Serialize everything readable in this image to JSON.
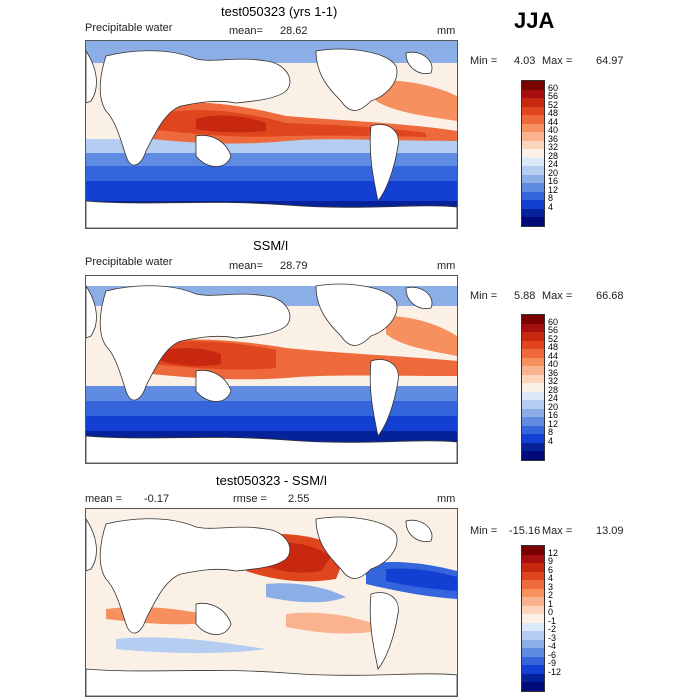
{
  "season": "JJA",
  "panels": [
    {
      "title": "test050323 (yrs 1-1)",
      "variable": "Precipitable water",
      "mean_label": "mean=",
      "mean_value": "28.62",
      "units": "mm",
      "min_label": "Min =",
      "min_value": "4.03",
      "max_label": "Max =",
      "max_value": "64.97",
      "colorbar_labels": [
        "60",
        "56",
        "52",
        "48",
        "44",
        "40",
        "36",
        "32",
        "28",
        "24",
        "20",
        "16",
        "12",
        "8",
        "4"
      ],
      "colorbar_colors": [
        "#7b0000",
        "#a50f0f",
        "#c8280f",
        "#e0461e",
        "#ee6a3c",
        "#f6905f",
        "#f9b38e",
        "#fbd6bd",
        "#fbf0e6",
        "#dbe9f8",
        "#b4cdf0",
        "#8caee6",
        "#5f8be0",
        "#3565dd",
        "#1340d2",
        "#06229a",
        "#000a78"
      ]
    },
    {
      "title": "SSM/I",
      "variable": "Precipitable water",
      "mean_label": "mean=",
      "mean_value": "28.79",
      "units": "mm",
      "min_label": "Min =",
      "min_value": "5.88",
      "max_label": "Max =",
      "max_value": "66.68",
      "colorbar_labels": [
        "60",
        "56",
        "52",
        "48",
        "44",
        "40",
        "36",
        "32",
        "28",
        "24",
        "20",
        "16",
        "12",
        "8",
        "4"
      ],
      "colorbar_colors": [
        "#7b0000",
        "#a50f0f",
        "#c8280f",
        "#e0461e",
        "#ee6a3c",
        "#f6905f",
        "#f9b38e",
        "#fbd6bd",
        "#fbf0e6",
        "#dbe9f8",
        "#b4cdf0",
        "#8caee6",
        "#5f8be0",
        "#3565dd",
        "#1340d2",
        "#06229a",
        "#000a78"
      ]
    },
    {
      "title": "test050323 - SSM/I",
      "variable": "",
      "mean_label": "mean =",
      "mean_value": "-0.17",
      "rmse_label": "rmse =",
      "rmse_value": "2.55",
      "units": "mm",
      "min_label": "Min =",
      "min_value": "-15.16",
      "max_label": "Max =",
      "max_value": "13.09",
      "colorbar_labels": [
        "12",
        "9",
        "6",
        "4",
        "3",
        "2",
        "1",
        "0",
        "-1",
        "-2",
        "-3",
        "-4",
        "-6",
        "-9",
        "-12"
      ],
      "colorbar_colors": [
        "#7b0000",
        "#a50f0f",
        "#c8280f",
        "#e0461e",
        "#ee6a3c",
        "#f6905f",
        "#f9b38e",
        "#fbd6bd",
        "#fbf0e6",
        "#dbe9f8",
        "#b4cdf0",
        "#8caee6",
        "#5f8be0",
        "#3565dd",
        "#1340d2",
        "#06229a",
        "#000a78"
      ]
    }
  ]
}
